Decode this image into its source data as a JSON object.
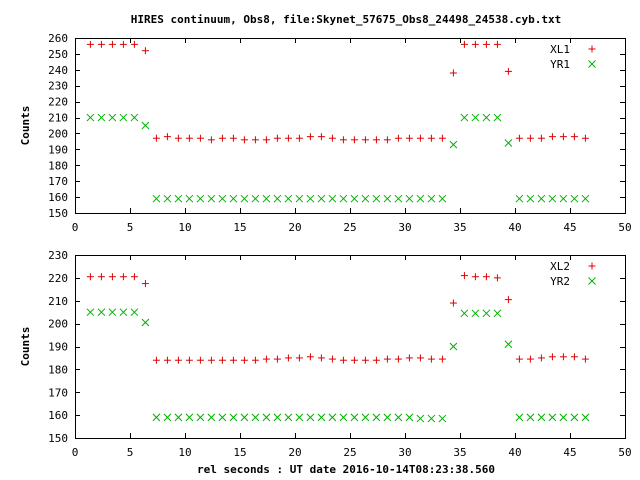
{
  "title": "HIRES continuum, Obs8, file:Skynet_57675_Obs8_24498_24538.cyb.txt",
  "xlabel": "rel seconds : UT date 2016-10-14T08:23:38.560",
  "colors": {
    "red": "#e00000",
    "green": "#00b000"
  },
  "chart_data": [
    {
      "type": "scatter",
      "ylabel": "Counts",
      "xlim": [
        0,
        50
      ],
      "ylim": [
        150,
        260
      ],
      "xticks": [
        0,
        5,
        10,
        15,
        20,
        25,
        30,
        35,
        40,
        45,
        50
      ],
      "yticks": [
        150,
        160,
        170,
        180,
        190,
        200,
        210,
        220,
        230,
        240,
        250,
        260
      ],
      "grid": false,
      "legend_position": "top-right",
      "x": [
        1.4,
        2.4,
        3.4,
        4.4,
        5.4,
        6.4,
        7.4,
        8.4,
        9.4,
        10.4,
        11.4,
        12.4,
        13.4,
        14.4,
        15.4,
        16.4,
        17.4,
        18.4,
        19.4,
        20.4,
        21.4,
        22.4,
        23.4,
        24.4,
        25.4,
        26.4,
        27.4,
        28.4,
        29.4,
        30.4,
        31.4,
        32.4,
        33.4,
        34.4,
        35.4,
        36.4,
        37.4,
        38.4,
        39.4,
        40.4,
        41.4,
        42.4,
        43.4,
        44.4,
        45.4,
        46.4
      ],
      "series": [
        {
          "name": "XL1",
          "marker": "plus",
          "color": "#e00000",
          "values": [
            256,
            256,
            256,
            256,
            256,
            252,
            197,
            198,
            197,
            197,
            197,
            196,
            197,
            197,
            196,
            196,
            196,
            197,
            197,
            197,
            198,
            198,
            197,
            196,
            196,
            196,
            196,
            196,
            197,
            197,
            197,
            197,
            197,
            238,
            256,
            256,
            256,
            256,
            239,
            197,
            197,
            197,
            198,
            198,
            198,
            197
          ]
        },
        {
          "name": "YR1",
          "marker": "cross",
          "color": "#00b000",
          "values": [
            210,
            210,
            210,
            210,
            210,
            205,
            159,
            159,
            159,
            159,
            159,
            159,
            159,
            159,
            159,
            159,
            159,
            159,
            159,
            159,
            159,
            159,
            159,
            159,
            159,
            159,
            159,
            159,
            159,
            159,
            159,
            159,
            159,
            193,
            210,
            210,
            210,
            210,
            194,
            159,
            159,
            159,
            159,
            159,
            159,
            159
          ]
        }
      ]
    },
    {
      "type": "scatter",
      "ylabel": "Counts",
      "xlim": [
        0,
        50
      ],
      "ylim": [
        150,
        230
      ],
      "xticks": [
        0,
        5,
        10,
        15,
        20,
        25,
        30,
        35,
        40,
        45,
        50
      ],
      "yticks": [
        150,
        160,
        170,
        180,
        190,
        200,
        210,
        220,
        230
      ],
      "grid": false,
      "legend_position": "top-right",
      "x": [
        1.4,
        2.4,
        3.4,
        4.4,
        5.4,
        6.4,
        7.4,
        8.4,
        9.4,
        10.4,
        11.4,
        12.4,
        13.4,
        14.4,
        15.4,
        16.4,
        17.4,
        18.4,
        19.4,
        20.4,
        21.4,
        22.4,
        23.4,
        24.4,
        25.4,
        26.4,
        27.4,
        28.4,
        29.4,
        30.4,
        31.4,
        32.4,
        33.4,
        34.4,
        35.4,
        36.4,
        37.4,
        38.4,
        39.4,
        40.4,
        41.4,
        42.4,
        43.4,
        44.4,
        45.4,
        46.4
      ],
      "series": [
        {
          "name": "XL2",
          "marker": "plus",
          "color": "#e00000",
          "values": [
            220.5,
            220.5,
            220.5,
            220.5,
            220.5,
            217.5,
            184,
            184,
            184,
            184,
            184,
            184,
            184,
            184,
            184,
            184,
            184.5,
            184.5,
            185,
            185,
            185.5,
            185,
            184.5,
            184,
            184,
            184,
            184,
            184.5,
            184.5,
            185,
            185,
            184.5,
            184.5,
            209,
            221,
            220.5,
            220.5,
            220,
            210.5,
            184.5,
            184.5,
            185,
            185.5,
            185.5,
            185.5,
            184.5
          ]
        },
        {
          "name": "YR2",
          "marker": "cross",
          "color": "#00b000",
          "values": [
            205,
            205,
            205,
            205,
            205,
            200.5,
            159,
            159,
            159,
            159,
            159,
            159,
            159,
            159,
            159,
            159,
            159,
            159,
            159,
            159,
            159,
            159,
            159,
            159,
            159,
            159,
            159,
            159,
            159,
            159,
            158.5,
            158.5,
            158.5,
            190,
            204.5,
            204.5,
            204.5,
            204.5,
            191,
            159,
            159,
            159,
            159,
            159,
            159,
            159
          ]
        }
      ]
    }
  ]
}
